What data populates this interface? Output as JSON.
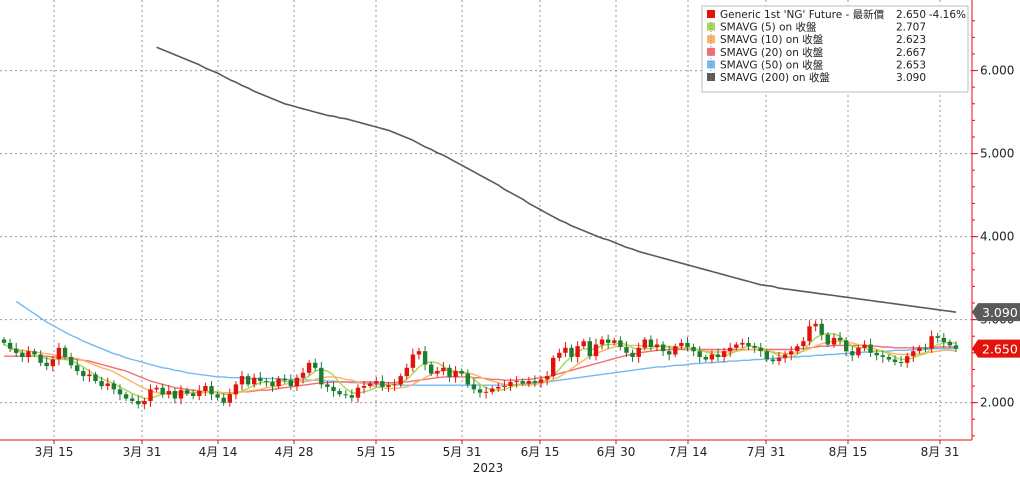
{
  "chart_data": {
    "type": "candlestick",
    "year_label": "2023",
    "x_ticks": [
      "3月 15",
      "3月 31",
      "4月 14",
      "4月 28",
      "5月 15",
      "5月 31",
      "6月 15",
      "6月 30",
      "7月 14",
      "7月 31",
      "8月 15",
      "8月 31"
    ],
    "y_ticks": [
      "2.000",
      "3.000",
      "4.000",
      "5.000",
      "6.000"
    ],
    "y_tick_values": [
      2,
      3,
      4,
      5,
      6
    ],
    "ylim": [
      1.55,
      6.85
    ],
    "grid": true,
    "legend_position": "top-right",
    "legend": [
      {
        "name": "Generic 1st 'NG' Future - 最新價",
        "value": "2.650",
        "change": "-4.16%",
        "color": "#e3120b"
      },
      {
        "name": "SMAVG (5)  on 收盤",
        "value": "2.707",
        "color": "#a6d854"
      },
      {
        "name": "SMAVG (10)  on 收盤",
        "value": "2.623",
        "color": "#fdb462"
      },
      {
        "name": "SMAVG (20)  on 收盤",
        "value": "2.667",
        "color": "#f46d75"
      },
      {
        "name": "SMAVG (50)  on 收盤",
        "value": "2.653",
        "color": "#74b9f0"
      },
      {
        "name": "SMAVG (200)  on 收盤",
        "value": "3.090",
        "color": "#5a5a5a"
      }
    ],
    "last_price_labels": [
      {
        "text": "3.090",
        "value": 3.09,
        "color": "#5a5a5a"
      },
      {
        "text": "2.650",
        "value": 2.65,
        "color": "#e3120b"
      }
    ],
    "closes": [
      2.72,
      2.65,
      2.6,
      2.55,
      2.62,
      2.58,
      2.48,
      2.44,
      2.52,
      2.66,
      2.55,
      2.45,
      2.38,
      2.32,
      2.34,
      2.26,
      2.2,
      2.23,
      2.16,
      2.1,
      2.05,
      2.02,
      1.98,
      2.02,
      2.16,
      2.18,
      2.1,
      2.14,
      2.05,
      2.15,
      2.11,
      2.08,
      2.14,
      2.2,
      2.1,
      2.06,
      2.0,
      2.1,
      2.22,
      2.32,
      2.22,
      2.3,
      2.26,
      2.25,
      2.2,
      2.29,
      2.27,
      2.2,
      2.3,
      2.36,
      2.48,
      2.42,
      2.22,
      2.19,
      2.14,
      2.1,
      2.09,
      2.06,
      2.18,
      2.2,
      2.23,
      2.26,
      2.19,
      2.21,
      2.22,
      2.32,
      2.42,
      2.58,
      2.62,
      2.46,
      2.35,
      2.38,
      2.42,
      2.31,
      2.38,
      2.35,
      2.22,
      2.16,
      2.12,
      2.13,
      2.17,
      2.19,
      2.2,
      2.25,
      2.26,
      2.23,
      2.26,
      2.24,
      2.28,
      2.32,
      2.54,
      2.6,
      2.66,
      2.55,
      2.68,
      2.74,
      2.56,
      2.7,
      2.76,
      2.72,
      2.75,
      2.67,
      2.6,
      2.55,
      2.66,
      2.76,
      2.67,
      2.7,
      2.62,
      2.58,
      2.68,
      2.72,
      2.67,
      2.62,
      2.55,
      2.52,
      2.58,
      2.55,
      2.62,
      2.66,
      2.7,
      2.72,
      2.68,
      2.66,
      2.62,
      2.52,
      2.5,
      2.54,
      2.58,
      2.62,
      2.68,
      2.74,
      2.92,
      2.95,
      2.82,
      2.7,
      2.78,
      2.75,
      2.62,
      2.57,
      2.66,
      2.7,
      2.6,
      2.57,
      2.55,
      2.52,
      2.49,
      2.48,
      2.56,
      2.62,
      2.66,
      2.65,
      2.8,
      2.78,
      2.73,
      2.69,
      2.65
    ],
    "ma5": [
      2.7,
      2.67,
      2.64,
      2.6,
      2.58,
      2.56,
      2.55,
      2.53,
      2.52,
      2.53,
      2.52,
      2.51,
      2.47,
      2.43,
      2.38,
      2.33,
      2.29,
      2.26,
      2.23,
      2.19,
      2.15,
      2.11,
      2.08,
      2.05,
      2.05,
      2.08,
      2.1,
      2.12,
      2.12,
      2.13,
      2.13,
      2.12,
      2.12,
      2.14,
      2.13,
      2.12,
      2.1,
      2.1,
      2.12,
      2.14,
      2.17,
      2.21,
      2.24,
      2.25,
      2.25,
      2.26,
      2.26,
      2.25,
      2.26,
      2.28,
      2.32,
      2.38,
      2.4,
      2.38,
      2.33,
      2.24,
      2.17,
      2.12,
      2.11,
      2.13,
      2.15,
      2.18,
      2.2,
      2.22,
      2.22,
      2.24,
      2.28,
      2.35,
      2.43,
      2.48,
      2.49,
      2.48,
      2.44,
      2.38,
      2.36,
      2.37,
      2.34,
      2.28,
      2.22,
      2.18,
      2.15,
      2.15,
      2.16,
      2.19,
      2.21,
      2.23,
      2.24,
      2.25,
      2.25,
      2.27,
      2.33,
      2.4,
      2.49,
      2.55,
      2.61,
      2.65,
      2.64,
      2.65,
      2.69,
      2.7,
      2.7,
      2.72,
      2.7,
      2.66,
      2.64,
      2.65,
      2.65,
      2.67,
      2.68,
      2.67,
      2.65,
      2.66,
      2.66,
      2.65,
      2.63,
      2.61,
      2.59,
      2.56,
      2.56,
      2.59,
      2.62,
      2.66,
      2.68,
      2.68,
      2.66,
      2.64,
      2.6,
      2.57,
      2.55,
      2.55,
      2.58,
      2.63,
      2.71,
      2.78,
      2.82,
      2.83,
      2.83,
      2.8,
      2.73,
      2.68,
      2.66,
      2.66,
      2.62,
      2.62,
      2.62,
      2.59,
      2.55,
      2.52,
      2.52,
      2.54,
      2.57,
      2.59,
      2.66,
      2.7,
      2.72,
      2.73,
      2.71
    ],
    "ma10": [
      2.64,
      2.64,
      2.63,
      2.62,
      2.61,
      2.6,
      2.59,
      2.58,
      2.56,
      2.55,
      2.54,
      2.53,
      2.51,
      2.48,
      2.45,
      2.42,
      2.4,
      2.37,
      2.33,
      2.29,
      2.25,
      2.21,
      2.17,
      2.14,
      2.12,
      2.11,
      2.1,
      2.1,
      2.1,
      2.11,
      2.12,
      2.12,
      2.12,
      2.13,
      2.13,
      2.12,
      2.12,
      2.12,
      2.13,
      2.14,
      2.15,
      2.16,
      2.18,
      2.19,
      2.2,
      2.22,
      2.24,
      2.25,
      2.25,
      2.26,
      2.28,
      2.3,
      2.31,
      2.31,
      2.3,
      2.28,
      2.27,
      2.25,
      2.23,
      2.21,
      2.19,
      2.18,
      2.17,
      2.17,
      2.18,
      2.19,
      2.22,
      2.26,
      2.3,
      2.34,
      2.37,
      2.39,
      2.39,
      2.38,
      2.37,
      2.36,
      2.34,
      2.31,
      2.28,
      2.26,
      2.24,
      2.22,
      2.21,
      2.21,
      2.21,
      2.21,
      2.22,
      2.23,
      2.25,
      2.28,
      2.31,
      2.36,
      2.41,
      2.46,
      2.51,
      2.56,
      2.59,
      2.62,
      2.65,
      2.67,
      2.68,
      2.69,
      2.69,
      2.69,
      2.68,
      2.68,
      2.68,
      2.68,
      2.68,
      2.67,
      2.66,
      2.65,
      2.64,
      2.63,
      2.62,
      2.61,
      2.61,
      2.61,
      2.61,
      2.62,
      2.63,
      2.64,
      2.64,
      2.63,
      2.62,
      2.61,
      2.6,
      2.59,
      2.59,
      2.6,
      2.62,
      2.65,
      2.68,
      2.71,
      2.73,
      2.74,
      2.74,
      2.73,
      2.72,
      2.7,
      2.68,
      2.66,
      2.64,
      2.62,
      2.6,
      2.59,
      2.58,
      2.58,
      2.58,
      2.59,
      2.6,
      2.61,
      2.62,
      2.63,
      2.63,
      2.62
    ],
    "ma20": [
      2.56,
      2.56,
      2.56,
      2.56,
      2.56,
      2.56,
      2.56,
      2.56,
      2.55,
      2.55,
      2.54,
      2.53,
      2.52,
      2.51,
      2.5,
      2.48,
      2.46,
      2.44,
      2.42,
      2.4,
      2.38,
      2.35,
      2.32,
      2.29,
      2.26,
      2.24,
      2.22,
      2.2,
      2.18,
      2.17,
      2.16,
      2.15,
      2.14,
      2.13,
      2.13,
      2.12,
      2.12,
      2.12,
      2.12,
      2.13,
      2.13,
      2.14,
      2.15,
      2.15,
      2.16,
      2.17,
      2.18,
      2.19,
      2.2,
      2.21,
      2.22,
      2.23,
      2.24,
      2.24,
      2.25,
      2.25,
      2.25,
      2.25,
      2.25,
      2.25,
      2.25,
      2.24,
      2.24,
      2.24,
      2.24,
      2.25,
      2.25,
      2.26,
      2.27,
      2.28,
      2.29,
      2.3,
      2.31,
      2.31,
      2.31,
      2.31,
      2.31,
      2.3,
      2.3,
      2.29,
      2.28,
      2.28,
      2.27,
      2.27,
      2.27,
      2.28,
      2.28,
      2.29,
      2.3,
      2.31,
      2.33,
      2.35,
      2.37,
      2.39,
      2.41,
      2.43,
      2.45,
      2.47,
      2.49,
      2.51,
      2.53,
      2.55,
      2.57,
      2.58,
      2.6,
      2.61,
      2.62,
      2.63,
      2.63,
      2.64,
      2.64,
      2.64,
      2.64,
      2.64,
      2.64,
      2.64,
      2.64,
      2.64,
      2.64,
      2.64,
      2.64,
      2.64,
      2.64,
      2.64,
      2.64,
      2.64,
      2.64,
      2.64,
      2.64,
      2.64,
      2.65,
      2.65,
      2.66,
      2.67,
      2.68,
      2.68,
      2.69,
      2.69,
      2.69,
      2.69,
      2.69,
      2.69,
      2.68,
      2.68,
      2.67,
      2.67,
      2.66,
      2.66,
      2.66,
      2.66,
      2.66,
      2.66,
      2.66,
      2.67,
      2.67,
      2.67,
      2.67
    ],
    "ma50": [
      3.22,
      3.17,
      3.12,
      3.07,
      3.02,
      2.97,
      2.93,
      2.89,
      2.85,
      2.81,
      2.78,
      2.74,
      2.71,
      2.68,
      2.65,
      2.62,
      2.59,
      2.57,
      2.54,
      2.52,
      2.5,
      2.48,
      2.46,
      2.44,
      2.42,
      2.41,
      2.39,
      2.38,
      2.36,
      2.35,
      2.34,
      2.33,
      2.32,
      2.31,
      2.31,
      2.3,
      2.3,
      2.3,
      2.29,
      2.29,
      2.29,
      2.29,
      2.29,
      2.29,
      2.28,
      2.28,
      2.28,
      2.28,
      2.27,
      2.27,
      2.27,
      2.26,
      2.26,
      2.25,
      2.25,
      2.24,
      2.24,
      2.23,
      2.23,
      2.22,
      2.22,
      2.22,
      2.22,
      2.21,
      2.21,
      2.21,
      2.21,
      2.21,
      2.21,
      2.21,
      2.21,
      2.21,
      2.21,
      2.21,
      2.21,
      2.21,
      2.21,
      2.21,
      2.21,
      2.21,
      2.21,
      2.21,
      2.22,
      2.22,
      2.23,
      2.23,
      2.24,
      2.25,
      2.26,
      2.27,
      2.28,
      2.29,
      2.3,
      2.31,
      2.32,
      2.33,
      2.34,
      2.35,
      2.36,
      2.37,
      2.38,
      2.39,
      2.4,
      2.41,
      2.42,
      2.43,
      2.43,
      2.44,
      2.45,
      2.45,
      2.46,
      2.47,
      2.47,
      2.48,
      2.48,
      2.49,
      2.49,
      2.5,
      2.5,
      2.51,
      2.51,
      2.52,
      2.52,
      2.53,
      2.53,
      2.54,
      2.54,
      2.55,
      2.55,
      2.56,
      2.56,
      2.57,
      2.57,
      2.58,
      2.58,
      2.59,
      2.59,
      2.6,
      2.6,
      2.61,
      2.61,
      2.62,
      2.62,
      2.62,
      2.63,
      2.63,
      2.63,
      2.64,
      2.64,
      2.64,
      2.65,
      2.65,
      2.65,
      2.65,
      2.65
    ],
    "ma200": [
      6.28,
      6.25,
      6.22,
      6.19,
      6.16,
      6.13,
      6.1,
      6.07,
      6.03,
      6.0,
      5.97,
      5.93,
      5.89,
      5.86,
      5.82,
      5.79,
      5.75,
      5.72,
      5.69,
      5.66,
      5.63,
      5.6,
      5.58,
      5.56,
      5.54,
      5.52,
      5.5,
      5.48,
      5.46,
      5.45,
      5.43,
      5.42,
      5.4,
      5.38,
      5.36,
      5.34,
      5.32,
      5.3,
      5.28,
      5.25,
      5.22,
      5.19,
      5.16,
      5.12,
      5.08,
      5.05,
      5.01,
      4.98,
      4.94,
      4.9,
      4.86,
      4.82,
      4.78,
      4.74,
      4.7,
      4.66,
      4.62,
      4.57,
      4.53,
      4.49,
      4.45,
      4.4,
      4.36,
      4.32,
      4.28,
      4.24,
      4.2,
      4.17,
      4.13,
      4.1,
      4.07,
      4.04,
      4.01,
      3.98,
      3.96,
      3.93,
      3.9,
      3.87,
      3.85,
      3.82,
      3.8,
      3.78,
      3.76,
      3.74,
      3.72,
      3.7,
      3.68,
      3.66,
      3.64,
      3.62,
      3.6,
      3.58,
      3.56,
      3.54,
      3.52,
      3.5,
      3.48,
      3.46,
      3.44,
      3.42,
      3.41,
      3.4,
      3.38,
      3.37,
      3.36,
      3.35,
      3.34,
      3.33,
      3.32,
      3.31,
      3.3,
      3.29,
      3.28,
      3.27,
      3.26,
      3.25,
      3.24,
      3.23,
      3.22,
      3.21,
      3.2,
      3.19,
      3.18,
      3.17,
      3.16,
      3.15,
      3.14,
      3.13,
      3.12,
      3.11,
      3.1,
      3.09
    ]
  }
}
